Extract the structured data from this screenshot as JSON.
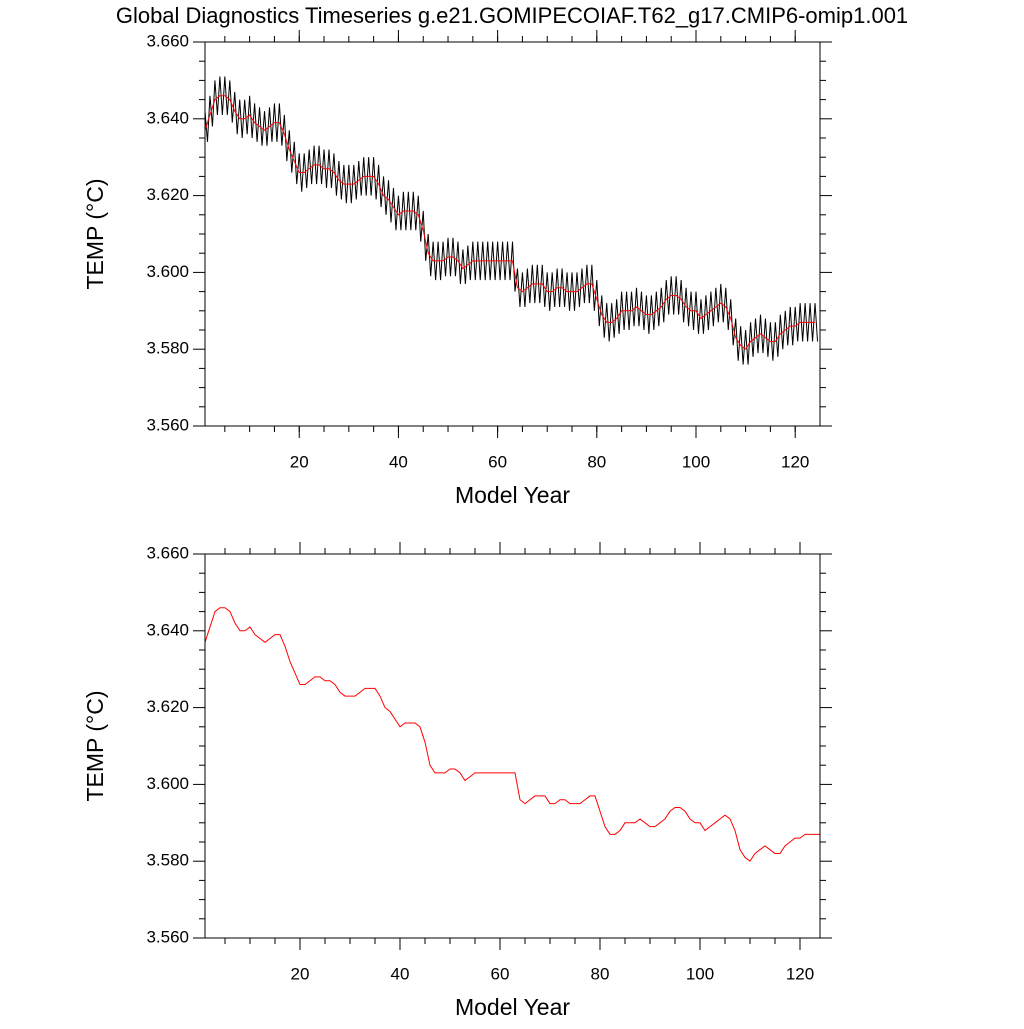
{
  "chart_data": [
    {
      "type": "line",
      "title": "Global Diagnostics Timeseries g.e21.GOMIPECOIAF.T62_g17.CMIP6-omip1.001",
      "x_label": "Model Year",
      "y_label": "TEMP (°C)",
      "xlim": [
        1,
        125
      ],
      "ylim": [
        3.56,
        3.66
      ],
      "xticks": [
        20,
        40,
        60,
        80,
        100,
        120
      ],
      "yticks": [
        {
          "value": 3.56,
          "label": "3.560"
        },
        {
          "value": 3.58,
          "label": "3.580"
        },
        {
          "value": 3.6,
          "label": "3.600"
        },
        {
          "value": 3.62,
          "label": "3.620"
        },
        {
          "value": 3.64,
          "label": "3.640"
        },
        {
          "value": 3.66,
          "label": "3.660"
        }
      ],
      "series": [
        {
          "color": "#000000",
          "x": [
            1,
            1.5,
            2,
            2.5,
            3,
            3.5,
            4,
            4.5,
            5,
            5.5,
            6,
            6.5,
            7,
            7.5,
            8,
            8.5,
            9,
            9.5,
            10,
            10.5,
            11,
            11.5,
            12,
            12.5,
            13,
            13.5,
            14,
            14.5,
            15,
            15.5,
            16,
            16.5,
            17,
            17.5,
            18,
            18.5,
            19,
            19.5,
            20,
            20.5,
            21,
            21.5,
            22,
            22.5,
            23,
            23.5,
            24,
            24.5,
            25,
            25.5,
            26,
            26.5,
            27,
            27.5,
            28,
            28.5,
            29,
            29.5,
            30,
            30.5,
            31,
            31.5,
            32,
            32.5,
            33,
            33.5,
            34,
            34.5,
            35,
            35.5,
            36,
            36.5,
            37,
            37.5,
            38,
            38.5,
            39,
            39.5,
            40,
            40.5,
            41,
            41.5,
            42,
            42.5,
            43,
            43.5,
            44,
            44.5,
            45,
            45.5,
            46,
            46.5,
            47,
            47.5,
            48,
            48.5,
            49,
            49.5,
            50,
            50.5,
            51,
            51.5,
            52,
            52.5,
            53,
            53.5,
            54,
            54.5,
            55,
            55.5,
            56,
            56.5,
            57,
            57.5,
            58,
            58.5,
            59,
            59.5,
            60,
            60.5,
            61,
            61.5,
            62,
            62.5,
            63,
            63.5,
            64,
            64.5,
            65,
            65.5,
            66,
            66.5,
            67,
            67.5,
            68,
            68.5,
            69,
            69.5,
            70,
            70.5,
            71,
            71.5,
            72,
            72.5,
            73,
            73.5,
            74,
            74.5,
            75,
            75.5,
            76,
            76.5,
            77,
            77.5,
            78,
            78.5,
            79,
            79.5,
            80,
            80.5,
            81,
            81.5,
            82,
            82.5,
            83,
            83.5,
            84,
            84.5,
            85,
            85.5,
            86,
            86.5,
            87,
            87.5,
            88,
            88.5,
            89,
            89.5,
            90,
            90.5,
            91,
            91.5,
            92,
            92.5,
            93,
            93.5,
            94,
            94.5,
            95,
            95.5,
            96,
            96.5,
            97,
            97.5,
            98,
            98.5,
            99,
            99.5,
            100,
            100.5,
            101,
            101.5,
            102,
            102.5,
            103,
            103.5,
            104,
            104.5,
            105,
            105.5,
            106,
            106.5,
            107,
            107.5,
            108,
            108.5,
            109,
            109.5,
            110,
            110.5,
            111,
            111.5,
            112,
            112.5,
            113,
            113.5,
            114,
            114.5,
            115,
            115.5,
            116,
            116.5,
            117,
            117.5,
            118,
            118.5,
            119,
            119.5,
            120,
            120.5,
            121,
            121.5,
            122,
            122.5,
            123,
            123.5,
            124,
            124.5
          ],
          "values": [
            3.642,
            3.634,
            3.646,
            3.638,
            3.65,
            3.641,
            3.651,
            3.641,
            3.651,
            3.641,
            3.65,
            3.639,
            3.647,
            3.636,
            3.645,
            3.635,
            3.645,
            3.636,
            3.646,
            3.635,
            3.644,
            3.634,
            3.643,
            3.633,
            3.642,
            3.633,
            3.643,
            3.634,
            3.644,
            3.634,
            3.644,
            3.633,
            3.641,
            3.629,
            3.637,
            3.626,
            3.634,
            3.623,
            3.631,
            3.621,
            3.631,
            3.622,
            3.632,
            3.623,
            3.633,
            3.623,
            3.633,
            3.623,
            3.632,
            3.622,
            3.632,
            3.622,
            3.631,
            3.62,
            3.629,
            3.619,
            3.628,
            3.618,
            3.628,
            3.618,
            3.628,
            3.619,
            3.629,
            3.62,
            3.63,
            3.62,
            3.63,
            3.62,
            3.63,
            3.619,
            3.628,
            3.617,
            3.625,
            3.615,
            3.624,
            3.613,
            3.622,
            3.611,
            3.62,
            3.611,
            3.621,
            3.611,
            3.621,
            3.611,
            3.621,
            3.611,
            3.62,
            3.608,
            3.616,
            3.603,
            3.61,
            3.599,
            3.608,
            3.598,
            3.608,
            3.598,
            3.608,
            3.599,
            3.609,
            3.599,
            3.609,
            3.599,
            3.608,
            3.597,
            3.606,
            3.597,
            3.607,
            3.598,
            3.608,
            3.598,
            3.608,
            3.598,
            3.608,
            3.598,
            3.608,
            3.598,
            3.608,
            3.598,
            3.608,
            3.598,
            3.608,
            3.598,
            3.608,
            3.598,
            3.608,
            3.595,
            3.601,
            3.591,
            3.6,
            3.591,
            3.601,
            3.592,
            3.602,
            3.592,
            3.602,
            3.592,
            3.602,
            3.591,
            3.6,
            3.59,
            3.6,
            3.591,
            3.601,
            3.591,
            3.601,
            3.591,
            3.6,
            3.59,
            3.6,
            3.59,
            3.6,
            3.591,
            3.601,
            3.592,
            3.602,
            3.592,
            3.602,
            3.59,
            3.598,
            3.586,
            3.594,
            3.583,
            3.592,
            3.582,
            3.592,
            3.583,
            3.593,
            3.584,
            3.595,
            3.585,
            3.595,
            3.585,
            3.595,
            3.586,
            3.596,
            3.586,
            3.595,
            3.585,
            3.594,
            3.584,
            3.594,
            3.585,
            3.595,
            3.586,
            3.596,
            3.587,
            3.598,
            3.589,
            3.599,
            3.589,
            3.599,
            3.589,
            3.598,
            3.587,
            3.596,
            3.586,
            3.595,
            3.585,
            3.595,
            3.584,
            3.593,
            3.584,
            3.594,
            3.585,
            3.595,
            3.586,
            3.596,
            3.587,
            3.597,
            3.587,
            3.596,
            3.585,
            3.593,
            3.581,
            3.588,
            3.577,
            3.586,
            3.576,
            3.585,
            3.576,
            3.587,
            3.578,
            3.588,
            3.579,
            3.589,
            3.579,
            3.588,
            3.578,
            3.587,
            3.577,
            3.587,
            3.578,
            3.589,
            3.58,
            3.59,
            3.581,
            3.591,
            3.581,
            3.591,
            3.582,
            3.592,
            3.582,
            3.592,
            3.582,
            3.592,
            3.582,
            3.592,
            3.582
          ]
        },
        {
          "color": "#ff0000",
          "x": [
            1,
            2,
            3,
            4,
            5,
            6,
            7,
            8,
            9,
            10,
            11,
            12,
            13,
            14,
            15,
            16,
            17,
            18,
            19,
            20,
            21,
            22,
            23,
            24,
            25,
            26,
            27,
            28,
            29,
            30,
            31,
            32,
            33,
            34,
            35,
            36,
            37,
            38,
            39,
            40,
            41,
            42,
            43,
            44,
            45,
            46,
            47,
            48,
            49,
            50,
            51,
            52,
            53,
            54,
            55,
            56,
            57,
            58,
            59,
            60,
            61,
            62,
            63,
            64,
            65,
            66,
            67,
            68,
            69,
            70,
            71,
            72,
            73,
            74,
            75,
            76,
            77,
            78,
            79,
            80,
            81,
            82,
            83,
            84,
            85,
            86,
            87,
            88,
            89,
            90,
            91,
            92,
            93,
            94,
            95,
            96,
            97,
            98,
            99,
            100,
            101,
            102,
            103,
            104,
            105,
            106,
            107,
            108,
            109,
            110,
            111,
            112,
            113,
            114,
            115,
            116,
            117,
            118,
            119,
            120,
            121,
            122,
            123,
            124
          ],
          "values": [
            3.637,
            3.641,
            3.645,
            3.646,
            3.646,
            3.645,
            3.642,
            3.64,
            3.64,
            3.641,
            3.639,
            3.638,
            3.637,
            3.638,
            3.639,
            3.639,
            3.636,
            3.632,
            3.629,
            3.626,
            3.626,
            3.627,
            3.628,
            3.628,
            3.627,
            3.627,
            3.626,
            3.624,
            3.623,
            3.623,
            3.623,
            3.624,
            3.625,
            3.625,
            3.625,
            3.623,
            3.62,
            3.619,
            3.617,
            3.615,
            3.616,
            3.616,
            3.616,
            3.615,
            3.611,
            3.605,
            3.603,
            3.603,
            3.603,
            3.604,
            3.604,
            3.603,
            3.601,
            3.602,
            3.603,
            3.603,
            3.603,
            3.603,
            3.603,
            3.603,
            3.603,
            3.603,
            3.603,
            3.596,
            3.595,
            3.596,
            3.597,
            3.597,
            3.597,
            3.595,
            3.595,
            3.596,
            3.596,
            3.595,
            3.595,
            3.595,
            3.596,
            3.597,
            3.597,
            3.593,
            3.589,
            3.587,
            3.587,
            3.588,
            3.59,
            3.59,
            3.59,
            3.591,
            3.59,
            3.589,
            3.589,
            3.59,
            3.591,
            3.593,
            3.594,
            3.594,
            3.593,
            3.591,
            3.59,
            3.59,
            3.588,
            3.589,
            3.59,
            3.591,
            3.592,
            3.591,
            3.588,
            3.583,
            3.581,
            3.58,
            3.582,
            3.583,
            3.584,
            3.583,
            3.582,
            3.582,
            3.584,
            3.585,
            3.586,
            3.586,
            3.587,
            3.587,
            3.587,
            3.587
          ]
        }
      ]
    },
    {
      "type": "line",
      "x_label": "Model Year",
      "y_label": "TEMP (°C)",
      "xlim": [
        1,
        124
      ],
      "ylim": [
        3.56,
        3.66
      ],
      "xticks": [
        20,
        40,
        60,
        80,
        100,
        120
      ],
      "yticks": [
        {
          "value": 3.56,
          "label": "3.560"
        },
        {
          "value": 3.58,
          "label": "3.580"
        },
        {
          "value": 3.6,
          "label": "3.600"
        },
        {
          "value": 3.62,
          "label": "3.620"
        },
        {
          "value": 3.64,
          "label": "3.640"
        },
        {
          "value": 3.66,
          "label": "3.660"
        }
      ],
      "series": [
        {
          "color": "#ff0000",
          "x": [
            1,
            2,
            3,
            4,
            5,
            6,
            7,
            8,
            9,
            10,
            11,
            12,
            13,
            14,
            15,
            16,
            17,
            18,
            19,
            20,
            21,
            22,
            23,
            24,
            25,
            26,
            27,
            28,
            29,
            30,
            31,
            32,
            33,
            34,
            35,
            36,
            37,
            38,
            39,
            40,
            41,
            42,
            43,
            44,
            45,
            46,
            47,
            48,
            49,
            50,
            51,
            52,
            53,
            54,
            55,
            56,
            57,
            58,
            59,
            60,
            61,
            62,
            63,
            64,
            65,
            66,
            67,
            68,
            69,
            70,
            71,
            72,
            73,
            74,
            75,
            76,
            77,
            78,
            79,
            80,
            81,
            82,
            83,
            84,
            85,
            86,
            87,
            88,
            89,
            90,
            91,
            92,
            93,
            94,
            95,
            96,
            97,
            98,
            99,
            100,
            101,
            102,
            103,
            104,
            105,
            106,
            107,
            108,
            109,
            110,
            111,
            112,
            113,
            114,
            115,
            116,
            117,
            118,
            119,
            120,
            121,
            122,
            123,
            124
          ],
          "values": [
            3.637,
            3.641,
            3.645,
            3.646,
            3.646,
            3.645,
            3.642,
            3.64,
            3.64,
            3.641,
            3.639,
            3.638,
            3.637,
            3.638,
            3.639,
            3.639,
            3.636,
            3.632,
            3.629,
            3.626,
            3.626,
            3.627,
            3.628,
            3.628,
            3.627,
            3.627,
            3.626,
            3.624,
            3.623,
            3.623,
            3.623,
            3.624,
            3.625,
            3.625,
            3.625,
            3.623,
            3.62,
            3.619,
            3.617,
            3.615,
            3.616,
            3.616,
            3.616,
            3.615,
            3.611,
            3.605,
            3.603,
            3.603,
            3.603,
            3.604,
            3.604,
            3.603,
            3.601,
            3.602,
            3.603,
            3.603,
            3.603,
            3.603,
            3.603,
            3.603,
            3.603,
            3.603,
            3.603,
            3.596,
            3.595,
            3.596,
            3.597,
            3.597,
            3.597,
            3.595,
            3.595,
            3.596,
            3.596,
            3.595,
            3.595,
            3.595,
            3.596,
            3.597,
            3.597,
            3.593,
            3.589,
            3.587,
            3.587,
            3.588,
            3.59,
            3.59,
            3.59,
            3.591,
            3.59,
            3.589,
            3.589,
            3.59,
            3.591,
            3.593,
            3.594,
            3.594,
            3.593,
            3.591,
            3.59,
            3.59,
            3.588,
            3.589,
            3.59,
            3.591,
            3.592,
            3.591,
            3.588,
            3.583,
            3.581,
            3.58,
            3.582,
            3.583,
            3.584,
            3.583,
            3.582,
            3.582,
            3.584,
            3.585,
            3.586,
            3.586,
            3.587,
            3.587,
            3.587,
            3.587
          ]
        }
      ]
    }
  ]
}
